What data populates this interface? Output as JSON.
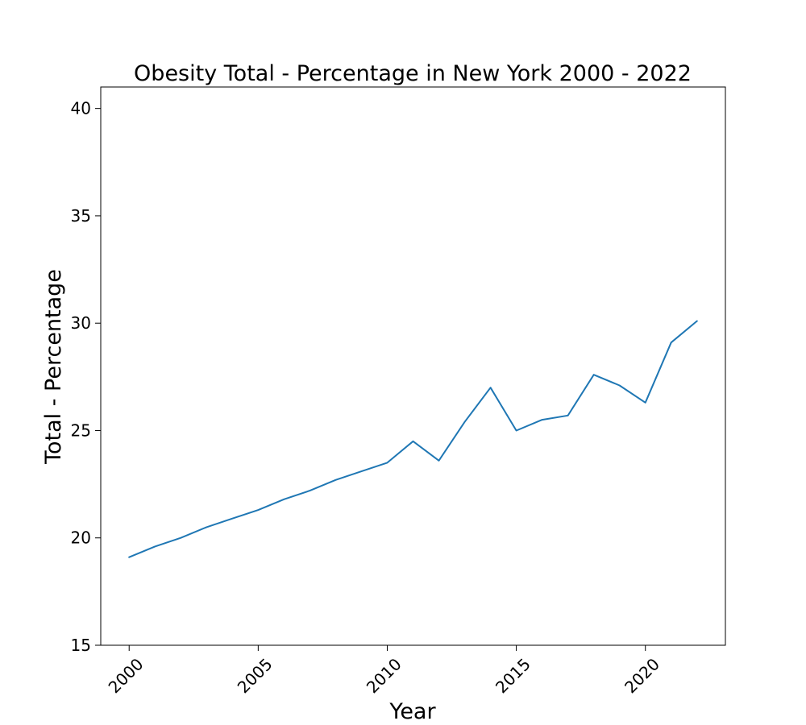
{
  "chart_data": {
    "type": "line",
    "title": "Obesity Total - Percentage in New York 2000 - 2022",
    "xlabel": "Year",
    "ylabel": "Total - Percentage",
    "xlim": [
      1998.9,
      2023.1
    ],
    "ylim": [
      15,
      41
    ],
    "x_ticks": [
      2000,
      2005,
      2010,
      2015,
      2020
    ],
    "y_ticks": [
      15,
      20,
      25,
      30,
      35,
      40
    ],
    "x_tick_rotation_deg": 45,
    "grid": false,
    "legend": "none",
    "series": [
      {
        "color": "#1f77b4",
        "x": [
          2000,
          2001,
          2002,
          2003,
          2004,
          2005,
          2006,
          2007,
          2008,
          2009,
          2010,
          2011,
          2012,
          2013,
          2014,
          2015,
          2016,
          2017,
          2018,
          2019,
          2020,
          2021,
          2022
        ],
        "y": [
          19.1,
          19.6,
          20.0,
          20.5,
          20.9,
          21.3,
          21.8,
          22.2,
          22.7,
          23.1,
          23.5,
          24.5,
          23.6,
          25.4,
          27.0,
          25.0,
          25.5,
          25.7,
          27.6,
          27.1,
          26.3,
          29.1,
          30.1
        ]
      }
    ]
  }
}
